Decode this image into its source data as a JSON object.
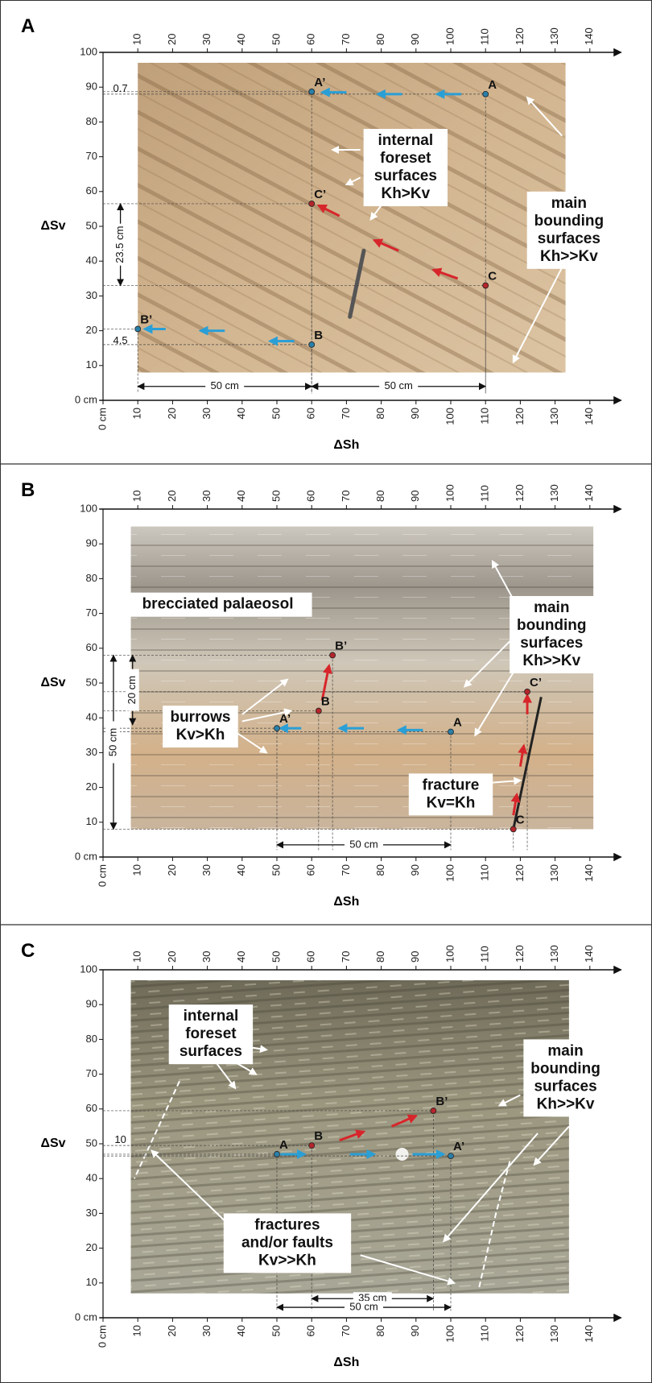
{
  "panels": [
    {
      "label": "A",
      "x_axis_label": "ΔSh",
      "y_axis_label": "ΔSv",
      "points": [
        {
          "label": "A",
          "x": 110,
          "y": 88,
          "color": "#2a7fa8"
        },
        {
          "label": "A’",
          "x": 60,
          "y": 88.7,
          "color": "#2a7fa8"
        },
        {
          "label": "B",
          "x": 60,
          "y": 16,
          "color": "#2a7fa8"
        },
        {
          "label": "B’",
          "x": 10,
          "y": 20.5,
          "color": "#2a7fa8"
        },
        {
          "label": "C",
          "x": 110,
          "y": 33,
          "color": "#b3262b"
        },
        {
          "label": "C’",
          "x": 60,
          "y": 56.5,
          "color": "#b3262b"
        }
      ],
      "dimensions": [
        "0.7",
        "23.5 cm",
        "4.5",
        "50 cm",
        "50 cm"
      ],
      "annotations": [
        {
          "lines": [
            "internal",
            "foreset",
            "surfaces",
            "Kh>Kv"
          ]
        },
        {
          "lines": [
            "main",
            "bounding",
            "surfaces",
            "Kh>>Kv"
          ]
        }
      ]
    },
    {
      "label": "B",
      "x_axis_label": "ΔSh",
      "y_axis_label": "ΔSv",
      "points": [
        {
          "label": "A’",
          "x": 50,
          "y": 37,
          "color": "#2a7fa8"
        },
        {
          "label": "A",
          "x": 100,
          "y": 36,
          "color": "#2a7fa8"
        },
        {
          "label": "B",
          "x": 62,
          "y": 42,
          "color": "#b3262b"
        },
        {
          "label": "B’",
          "x": 66,
          "y": 58,
          "color": "#b3262b"
        },
        {
          "label": "C",
          "x": 118,
          "y": 8,
          "color": "#b3262b"
        },
        {
          "label": "C’",
          "x": 122,
          "y": 47.5,
          "color": "#b3262b"
        }
      ],
      "dimensions": [
        "20 cm",
        "50 cm",
        "50 cm"
      ],
      "annotations": [
        {
          "lines": [
            "brecciated palaeosol"
          ]
        },
        {
          "lines": [
            "main",
            "bounding",
            "surfaces",
            "Kh>>Kv"
          ]
        },
        {
          "lines": [
            "burrows",
            "Kv>Kh"
          ]
        },
        {
          "lines": [
            "fracture",
            "Kv=Kh"
          ]
        }
      ]
    },
    {
      "label": "C",
      "x_axis_label": "ΔSh",
      "y_axis_label": "ΔSv",
      "points": [
        {
          "label": "A",
          "x": 50,
          "y": 47,
          "color": "#2a7fa8"
        },
        {
          "label": "B",
          "x": 60,
          "y": 49.5,
          "color": "#b3262b"
        },
        {
          "label": "B’",
          "x": 95,
          "y": 59.5,
          "color": "#b3262b"
        },
        {
          "label": "A’",
          "x": 100,
          "y": 46.5,
          "color": "#2a7fa8"
        }
      ],
      "dimensions": [
        "10",
        "35 cm",
        "50 cm"
      ],
      "annotations": [
        {
          "lines": [
            "internal",
            "foreset",
            "surfaces"
          ]
        },
        {
          "lines": [
            "main",
            "bounding",
            "surfaces",
            "Kh>>Kv"
          ]
        },
        {
          "lines": [
            "fractures",
            "and/or faults",
            "Kv>>Kh"
          ]
        }
      ]
    }
  ],
  "xticks": [
    {
      "value": 0,
      "label": "0 cm"
    },
    10,
    20,
    30,
    40,
    50,
    60,
    70,
    80,
    90,
    100,
    110,
    120,
    130,
    140
  ],
  "yticks": [
    {
      "value": 0,
      "label": "0 cm"
    },
    10,
    20,
    30,
    40,
    50,
    60,
    70,
    80,
    90,
    100
  ]
}
